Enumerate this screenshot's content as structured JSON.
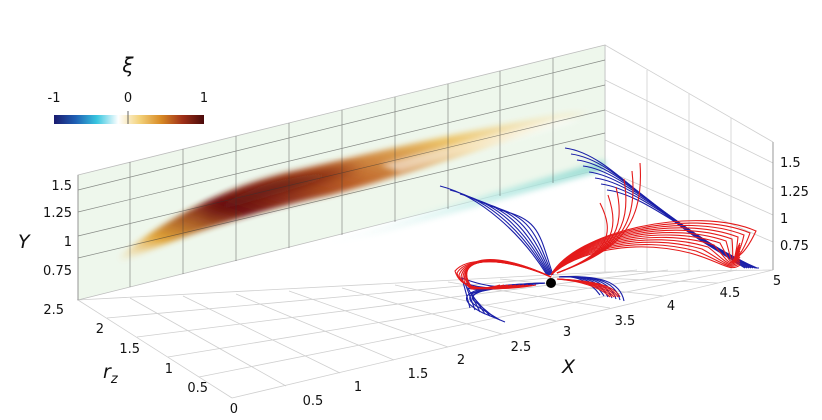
{
  "colorbar": {
    "symbol": "ξ",
    "ticks": [
      "-1",
      "0",
      "1"
    ],
    "colors": [
      "#1a1a6e",
      "#1f5fb4",
      "#38c6e0",
      "#ffffff",
      "#f3d27a",
      "#d88a25",
      "#a03018",
      "#4a0a0a"
    ]
  },
  "axes": {
    "x": {
      "label": "X",
      "ticks": [
        "0.5",
        "1",
        "1.5",
        "2",
        "2.5",
        "3",
        "3.5",
        "4",
        "4.5",
        "5"
      ]
    },
    "y": {
      "label": "Y",
      "ticks": [
        "0.75",
        "1",
        "1.25",
        "1.5"
      ]
    },
    "rz": {
      "label": "r",
      "subscript": "z",
      "ticks": [
        "0",
        "0.5",
        "1",
        "1.5",
        "2",
        "2.5"
      ]
    },
    "back_z": {
      "ticks": [
        "0.75",
        "1",
        "1.25",
        "1.5"
      ]
    }
  },
  "colors": {
    "field_lines_lower": "#1a1fa8",
    "field_lines_upper": "#e41a1a",
    "null_point": "#000000",
    "grid": "#c8c8c8",
    "slice_background": "#eef7ec"
  }
}
